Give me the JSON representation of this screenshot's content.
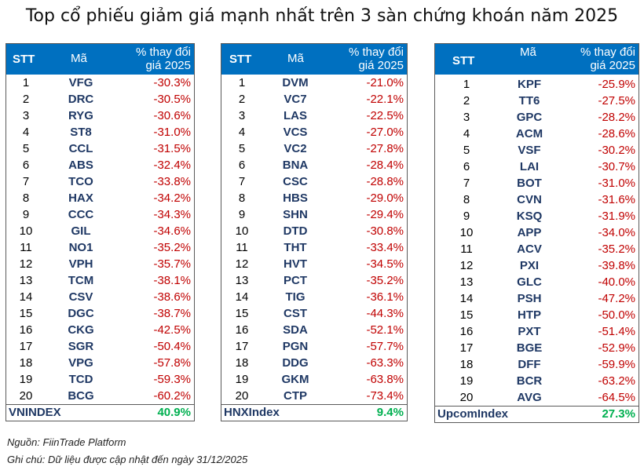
{
  "title": "Top cổ phiếu giảm giá mạnh nhất trên 3 sàn chứng khoán năm 2025",
  "header": {
    "stt": "STT",
    "code": "Mã",
    "pct_line1": "% thay đổi",
    "pct_line2": "giá 2025"
  },
  "tables": [
    {
      "rows": [
        {
          "stt": "1",
          "code": "VFG",
          "pct": "-30.3%"
        },
        {
          "stt": "2",
          "code": "DRC",
          "pct": "-30.5%"
        },
        {
          "stt": "3",
          "code": "RYG",
          "pct": "-30.6%"
        },
        {
          "stt": "4",
          "code": "ST8",
          "pct": "-31.0%"
        },
        {
          "stt": "5",
          "code": "CCL",
          "pct": "-31.5%"
        },
        {
          "stt": "6",
          "code": "ABS",
          "pct": "-32.4%"
        },
        {
          "stt": "7",
          "code": "TCO",
          "pct": "-33.8%"
        },
        {
          "stt": "8",
          "code": "HAX",
          "pct": "-34.2%"
        },
        {
          "stt": "9",
          "code": "CCC",
          "pct": "-34.3%"
        },
        {
          "stt": "10",
          "code": "GIL",
          "pct": "-34.6%"
        },
        {
          "stt": "11",
          "code": "NO1",
          "pct": "-35.2%"
        },
        {
          "stt": "12",
          "code": "VPH",
          "pct": "-35.7%"
        },
        {
          "stt": "13",
          "code": "TCM",
          "pct": "-38.1%"
        },
        {
          "stt": "14",
          "code": "CSV",
          "pct": "-38.6%"
        },
        {
          "stt": "15",
          "code": "DGC",
          "pct": "-38.7%"
        },
        {
          "stt": "16",
          "code": "CKG",
          "pct": "-42.5%"
        },
        {
          "stt": "17",
          "code": "SGR",
          "pct": "-50.4%"
        },
        {
          "stt": "18",
          "code": "VPG",
          "pct": "-57.8%"
        },
        {
          "stt": "19",
          "code": "TCD",
          "pct": "-59.3%"
        },
        {
          "stt": "20",
          "code": "BCG",
          "pct": "-60.2%"
        }
      ],
      "index_name": "VNINDEX",
      "index_value": "40.9%"
    },
    {
      "rows": [
        {
          "stt": "1",
          "code": "DVM",
          "pct": "-21.0%"
        },
        {
          "stt": "2",
          "code": "VC7",
          "pct": "-22.1%"
        },
        {
          "stt": "3",
          "code": "LAS",
          "pct": "-22.5%"
        },
        {
          "stt": "4",
          "code": "VCS",
          "pct": "-27.0%"
        },
        {
          "stt": "5",
          "code": "VC2",
          "pct": "-27.8%"
        },
        {
          "stt": "6",
          "code": "BNA",
          "pct": "-28.4%"
        },
        {
          "stt": "7",
          "code": "CSC",
          "pct": "-28.8%"
        },
        {
          "stt": "8",
          "code": "HBS",
          "pct": "-29.0%"
        },
        {
          "stt": "9",
          "code": "SHN",
          "pct": "-29.4%"
        },
        {
          "stt": "10",
          "code": "DTD",
          "pct": "-30.8%"
        },
        {
          "stt": "11",
          "code": "THT",
          "pct": "-33.4%"
        },
        {
          "stt": "12",
          "code": "HVT",
          "pct": "-34.5%"
        },
        {
          "stt": "13",
          "code": "PCT",
          "pct": "-35.2%"
        },
        {
          "stt": "14",
          "code": "TIG",
          "pct": "-36.1%"
        },
        {
          "stt": "15",
          "code": "CST",
          "pct": "-44.3%"
        },
        {
          "stt": "16",
          "code": "SDA",
          "pct": "-52.1%"
        },
        {
          "stt": "17",
          "code": "PGN",
          "pct": "-57.7%"
        },
        {
          "stt": "18",
          "code": "DDG",
          "pct": "-63.3%"
        },
        {
          "stt": "19",
          "code": "GKM",
          "pct": "-63.8%"
        },
        {
          "stt": "20",
          "code": "CTP",
          "pct": "-73.4%"
        }
      ],
      "index_name": "HNXIndex",
      "index_value": "9.4%"
    },
    {
      "rows": [
        {
          "stt": "1",
          "code": "KPF",
          "pct": "-25.9%"
        },
        {
          "stt": "2",
          "code": "TT6",
          "pct": "-27.5%"
        },
        {
          "stt": "3",
          "code": "GPC",
          "pct": "-28.2%"
        },
        {
          "stt": "4",
          "code": "ACM",
          "pct": "-28.6%"
        },
        {
          "stt": "5",
          "code": "VSF",
          "pct": "-30.2%"
        },
        {
          "stt": "6",
          "code": "LAI",
          "pct": "-30.7%"
        },
        {
          "stt": "7",
          "code": "BOT",
          "pct": "-31.0%"
        },
        {
          "stt": "8",
          "code": "CVN",
          "pct": "-31.6%"
        },
        {
          "stt": "9",
          "code": "KSQ",
          "pct": "-31.9%"
        },
        {
          "stt": "10",
          "code": "APP",
          "pct": "-34.0%"
        },
        {
          "stt": "11",
          "code": "ACV",
          "pct": "-35.2%"
        },
        {
          "stt": "12",
          "code": "PXI",
          "pct": "-39.8%"
        },
        {
          "stt": "13",
          "code": "GLC",
          "pct": "-40.0%"
        },
        {
          "stt": "14",
          "code": "PSH",
          "pct": "-47.2%"
        },
        {
          "stt": "15",
          "code": "HTP",
          "pct": "-50.0%"
        },
        {
          "stt": "16",
          "code": "PXT",
          "pct": "-51.4%"
        },
        {
          "stt": "17",
          "code": "BGE",
          "pct": "-52.9%"
        },
        {
          "stt": "18",
          "code": "DFF",
          "pct": "-59.9%"
        },
        {
          "stt": "19",
          "code": "BCR",
          "pct": "-63.2%"
        },
        {
          "stt": "20",
          "code": "AVG",
          "pct": "-64.5%"
        }
      ],
      "index_name": "UpcomIndex",
      "index_value": "27.3%"
    }
  ],
  "source": "Nguồn: FiinTrade Platform",
  "note": "Ghi chú: Dữ liệu được cập nhật đến ngày 31/12/2025",
  "colors": {
    "header_bg": "#0070C0",
    "code_text": "#1F3864",
    "negative": "#C00000",
    "positive": "#00B050"
  }
}
